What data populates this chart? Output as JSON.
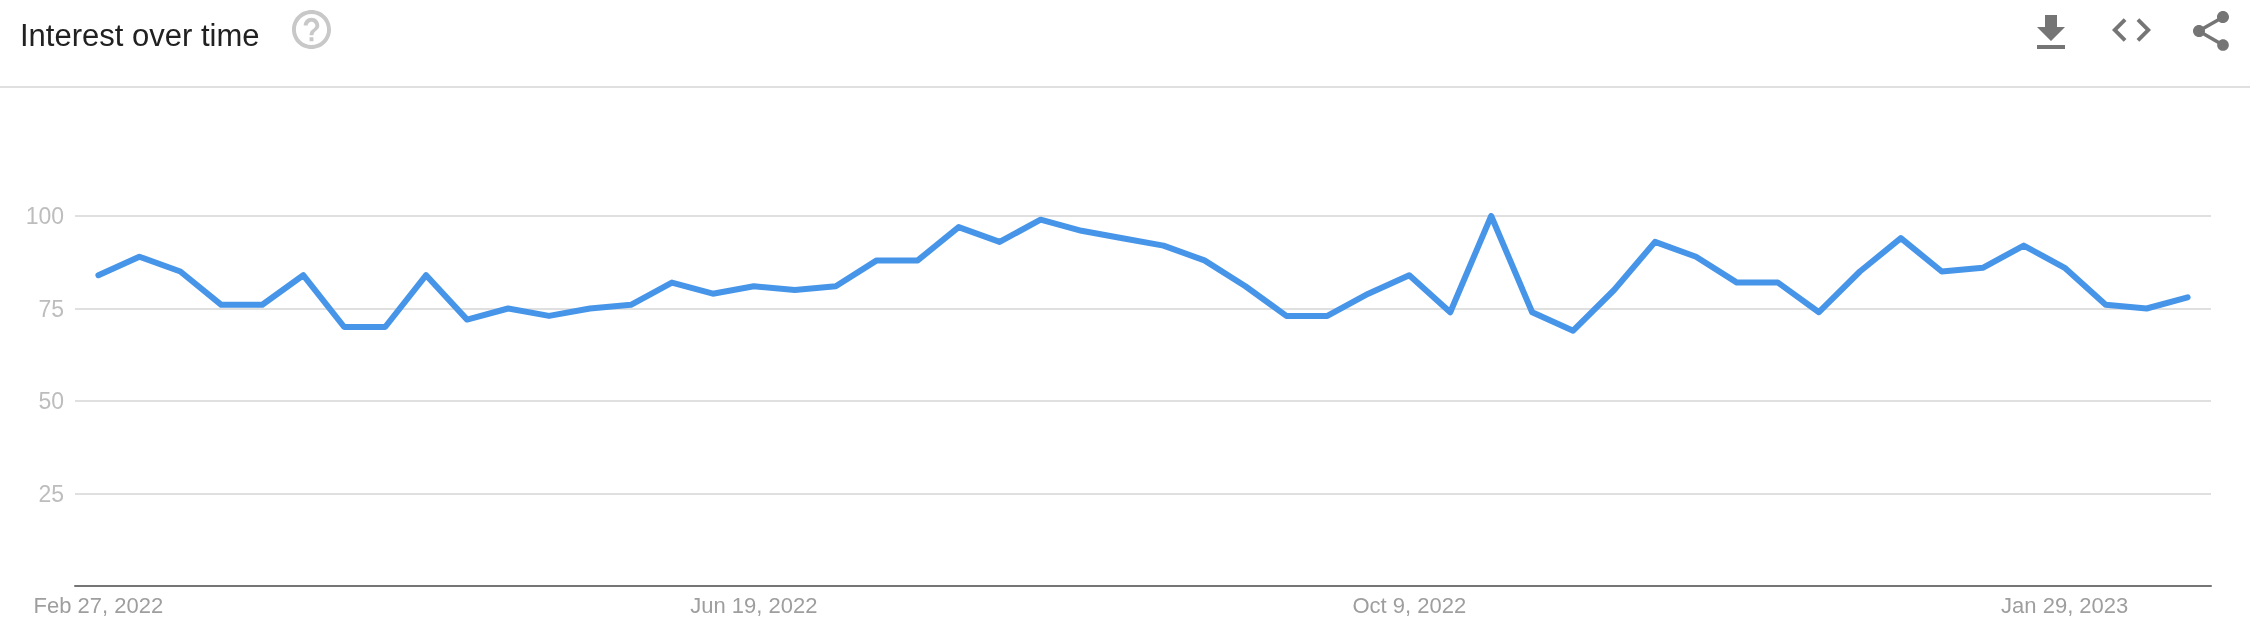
{
  "chart_data": {
    "type": "line",
    "title": "Interest over time",
    "x": [
      "2022-02-27",
      "2022-03-06",
      "2022-03-13",
      "2022-03-20",
      "2022-03-27",
      "2022-04-03",
      "2022-04-10",
      "2022-04-17",
      "2022-04-24",
      "2022-05-01",
      "2022-05-08",
      "2022-05-15",
      "2022-05-22",
      "2022-05-29",
      "2022-06-05",
      "2022-06-12",
      "2022-06-19",
      "2022-06-26",
      "2022-07-03",
      "2022-07-10",
      "2022-07-17",
      "2022-07-24",
      "2022-07-31",
      "2022-08-07",
      "2022-08-14",
      "2022-08-21",
      "2022-08-28",
      "2022-09-04",
      "2022-09-11",
      "2022-09-18",
      "2022-09-25",
      "2022-10-02",
      "2022-10-09",
      "2022-10-16",
      "2022-10-23",
      "2022-10-30",
      "2022-11-06",
      "2022-11-13",
      "2022-11-20",
      "2022-11-27",
      "2022-12-04",
      "2022-12-11",
      "2022-12-18",
      "2022-12-25",
      "2023-01-01",
      "2023-01-08",
      "2023-01-15",
      "2023-01-22",
      "2023-01-29",
      "2023-02-05",
      "2023-02-12",
      "2023-02-19"
    ],
    "values": [
      84,
      89,
      85,
      76,
      76,
      84,
      70,
      70,
      84,
      72,
      75,
      73,
      75,
      76,
      82,
      79,
      81,
      80,
      81,
      88,
      88,
      97,
      93,
      99,
      96,
      94,
      92,
      88,
      81,
      73,
      73,
      79,
      84,
      74,
      100,
      74,
      69,
      80,
      93,
      89,
      82,
      82,
      74,
      85,
      94,
      85,
      86,
      92,
      86,
      76,
      75,
      78
    ],
    "color": "#4795e8",
    "xlim": [
      "2022-02-23",
      "2023-02-23"
    ],
    "xticks": [
      {
        "value": "2022-02-27",
        "label": "Feb 27, 2022"
      },
      {
        "value": "2022-06-19",
        "label": "Jun 19, 2022"
      },
      {
        "value": "2022-10-09",
        "label": "Oct 9, 2022"
      },
      {
        "value": "2023-01-29",
        "label": "Jan 29, 2023"
      }
    ],
    "ylim": [
      0,
      100
    ],
    "yticks": [
      25,
      50,
      75,
      100
    ],
    "grid": "y",
    "marker": "none",
    "line_style": "solid"
  }
}
